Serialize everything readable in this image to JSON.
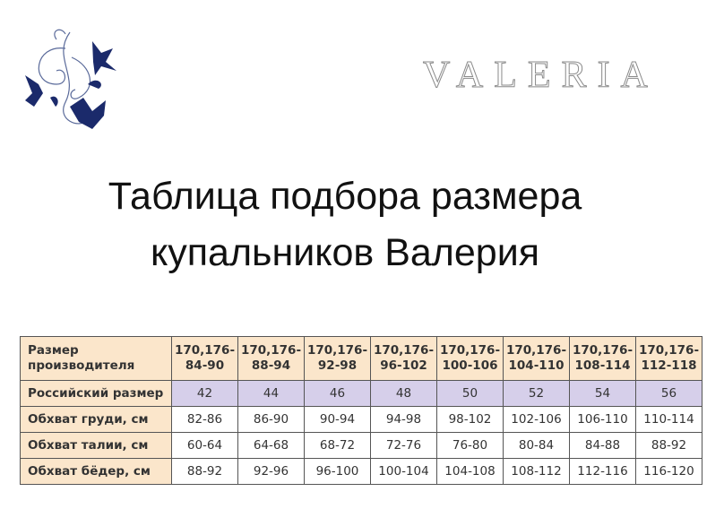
{
  "brand": {
    "logo_text": "VALERIA"
  },
  "title": {
    "line1": "Таблица подбора размера",
    "line2": "купальников Валерия"
  },
  "colors": {
    "header_bg": "#fbe6cb",
    "russian_row_bg": "#d6cfea",
    "ornament": "#1b2a6b"
  },
  "table": {
    "header": {
      "label": "Размер производителя",
      "cols": [
        "170,176- 84-90",
        "170,176- 88-94",
        "170,176- 92-98",
        "170,176- 96-102",
        "170,176- 100-106",
        "170,176- 104-110",
        "170,176- 108-114",
        "170,176- 112-118"
      ]
    },
    "rows": [
      {
        "label": "Российский размер",
        "values": [
          "42",
          "44",
          "46",
          "48",
          "50",
          "52",
          "54",
          "56"
        ]
      },
      {
        "label": "Обхват груди, см",
        "values": [
          "82-86",
          "86-90",
          "90-94",
          "94-98",
          "98-102",
          "102-106",
          "106-110",
          "110-114"
        ]
      },
      {
        "label": "Обхват талии, см",
        "values": [
          "60-64",
          "64-68",
          "68-72",
          "72-76",
          "76-80",
          "80-84",
          "84-88",
          "88-92"
        ]
      },
      {
        "label": "Обхват бёдер, см",
        "values": [
          "88-92",
          "92-96",
          "96-100",
          "100-104",
          "104-108",
          "108-112",
          "112-116",
          "116-120"
        ]
      }
    ]
  }
}
